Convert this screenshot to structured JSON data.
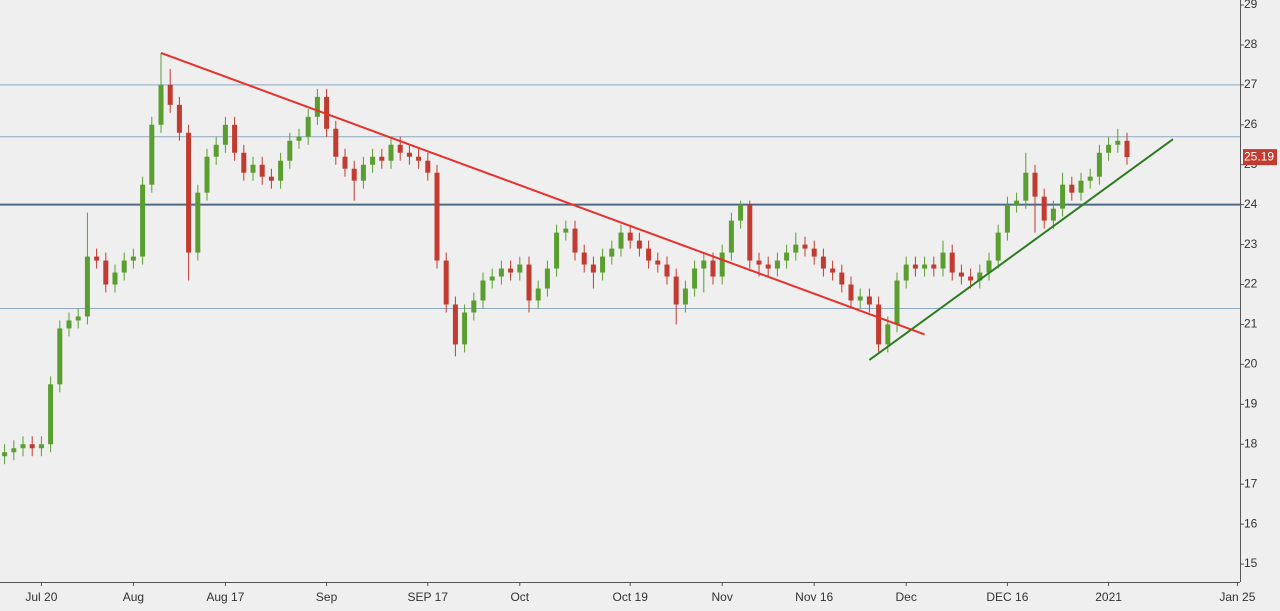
{
  "chart_data": {
    "type": "candlestick",
    "categories": [
      null,
      null,
      null,
      null,
      "Jul 20",
      null,
      null,
      null,
      null,
      null,
      null,
      null,
      null,
      null,
      "Aug",
      null,
      null,
      null,
      null,
      null,
      null,
      null,
      null,
      null,
      "Aug 17",
      null,
      null,
      null,
      null,
      null,
      null,
      null,
      null,
      null,
      null,
      "Sep",
      null,
      null,
      null,
      null,
      null,
      null,
      null,
      null,
      null,
      null,
      "SEP 17",
      null,
      null,
      null,
      null,
      null,
      null,
      null,
      null,
      null,
      "Oct",
      null,
      null,
      null,
      null,
      null,
      null,
      null,
      null,
      null,
      null,
      null,
      "Oct 19",
      null,
      null,
      null,
      null,
      null,
      null,
      null,
      null,
      null,
      "Nov",
      null,
      null,
      null,
      null,
      null,
      null,
      null,
      null,
      null,
      "Nov 16",
      null,
      null,
      null,
      null,
      null,
      null,
      null,
      null,
      null,
      "Dec",
      null,
      null,
      null,
      null,
      null,
      null,
      null,
      null,
      null,
      null,
      "DEC 16",
      null,
      null,
      null,
      null,
      null,
      null,
      null,
      null,
      null,
      null,
      "2021",
      null,
      null,
      null,
      null,
      null,
      null,
      null,
      null,
      null,
      null,
      null,
      null,
      null,
      "Jan 25"
    ],
    "open": [
      17.7,
      17.8,
      17.9,
      18.0,
      17.9,
      18.0,
      19.5,
      20.9,
      21.1,
      21.2,
      22.7,
      22.6,
      22.0,
      22.3,
      22.6,
      22.7,
      24.5,
      26.0,
      27.0,
      26.5,
      25.8,
      22.8,
      24.3,
      25.2,
      25.5,
      26.0,
      25.3,
      24.8,
      25.0,
      24.7,
      24.6,
      25.1,
      25.6,
      25.7,
      26.2,
      26.7,
      25.9,
      25.2,
      24.9,
      24.6,
      25.0,
      25.2,
      25.1,
      25.5,
      25.3,
      25.2,
      25.1,
      24.8,
      22.6,
      21.5,
      20.5,
      21.3,
      21.6,
      22.1,
      22.2,
      22.4,
      22.3,
      22.5,
      21.6,
      21.9,
      22.4,
      23.3,
      23.4,
      22.8,
      22.5,
      22.3,
      22.7,
      22.9,
      23.3,
      23.1,
      22.9,
      22.6,
      22.5,
      22.2,
      21.5,
      21.9,
      22.4,
      22.6,
      22.2,
      22.8,
      23.6,
      24.0,
      22.6,
      22.5,
      22.4,
      22.6,
      22.8,
      23.0,
      22.9,
      22.7,
      22.4,
      22.3,
      22.0,
      21.6,
      21.7,
      21.5,
      20.5,
      21.0,
      22.1,
      22.5,
      22.4,
      22.5,
      22.4,
      22.8,
      22.3,
      22.2,
      22.1,
      22.3,
      22.6,
      23.3,
      24.0,
      24.1,
      24.8,
      24.2,
      23.6,
      23.9,
      24.5,
      24.3,
      24.6,
      24.7,
      25.3,
      25.5,
      25.6,
      null,
      null,
      null,
      null,
      null,
      null,
      null,
      null,
      null,
      null,
      null,
      null
    ],
    "high": [
      18.0,
      18.1,
      18.2,
      18.2,
      18.2,
      19.7,
      21.1,
      21.3,
      21.4,
      23.8,
      22.9,
      22.8,
      22.5,
      22.8,
      22.9,
      24.7,
      26.2,
      27.8,
      27.4,
      26.7,
      26.0,
      24.5,
      25.4,
      25.7,
      26.2,
      26.2,
      25.5,
      25.2,
      25.2,
      24.9,
      25.3,
      25.8,
      25.9,
      26.4,
      26.9,
      26.9,
      26.1,
      25.4,
      25.1,
      25.2,
      25.4,
      25.4,
      25.7,
      25.7,
      25.5,
      25.4,
      25.3,
      25.0,
      22.8,
      21.7,
      21.5,
      21.8,
      22.3,
      22.4,
      22.6,
      22.6,
      22.7,
      22.7,
      22.1,
      22.6,
      23.5,
      23.6,
      23.6,
      23.0,
      22.7,
      22.9,
      23.1,
      23.5,
      23.5,
      23.3,
      23.1,
      22.8,
      22.7,
      22.4,
      22.1,
      22.6,
      22.8,
      22.8,
      23.0,
      23.8,
      24.1,
      24.1,
      22.8,
      22.7,
      22.8,
      23.0,
      23.3,
      23.2,
      23.1,
      22.9,
      22.6,
      22.5,
      22.2,
      21.9,
      21.9,
      21.7,
      21.2,
      22.3,
      22.7,
      22.7,
      22.7,
      22.7,
      23.1,
      23.0,
      22.5,
      22.4,
      22.5,
      22.8,
      23.5,
      24.2,
      24.3,
      25.3,
      25.0,
      24.4,
      24.1,
      24.8,
      24.7,
      24.8,
      24.9,
      25.5,
      25.7,
      25.9,
      25.8,
      null,
      null,
      null,
      null,
      null,
      null,
      null,
      null,
      null,
      null,
      null,
      null
    ],
    "low": [
      17.5,
      17.6,
      17.7,
      17.7,
      17.7,
      17.8,
      19.3,
      20.7,
      20.9,
      21.0,
      22.4,
      21.8,
      21.8,
      22.1,
      22.4,
      22.5,
      24.3,
      25.8,
      26.3,
      25.6,
      22.1,
      22.6,
      24.1,
      25.0,
      25.3,
      25.1,
      24.6,
      24.6,
      24.5,
      24.4,
      24.4,
      24.9,
      25.4,
      25.5,
      26.0,
      25.7,
      25.0,
      24.7,
      24.1,
      24.4,
      24.8,
      24.9,
      24.9,
      25.1,
      25.0,
      24.9,
      24.6,
      22.4,
      21.3,
      20.2,
      20.3,
      21.1,
      21.4,
      21.9,
      22.0,
      22.1,
      22.1,
      21.3,
      21.4,
      21.7,
      22.2,
      23.1,
      22.6,
      22.3,
      21.9,
      22.1,
      22.5,
      22.7,
      22.9,
      22.7,
      22.4,
      22.3,
      22.0,
      21.0,
      21.3,
      21.7,
      21.8,
      22.0,
      22.0,
      22.6,
      23.4,
      22.4,
      22.2,
      22.2,
      22.2,
      22.4,
      22.6,
      22.7,
      22.5,
      22.2,
      22.1,
      21.8,
      21.4,
      21.4,
      21.3,
      20.3,
      20.3,
      20.8,
      21.9,
      22.2,
      22.2,
      22.2,
      22.2,
      22.1,
      22.0,
      21.9,
      21.9,
      22.1,
      22.4,
      23.1,
      23.8,
      23.9,
      23.3,
      23.4,
      23.4,
      23.7,
      24.1,
      24.1,
      24.4,
      24.5,
      25.1,
      25.3,
      25.0,
      null,
      null,
      null,
      null,
      null,
      null,
      null,
      null,
      null,
      null,
      null,
      null
    ],
    "close": [
      17.8,
      17.9,
      18.0,
      17.9,
      18.0,
      19.5,
      20.9,
      21.1,
      21.2,
      22.7,
      22.6,
      22.0,
      22.3,
      22.6,
      22.7,
      24.5,
      26.0,
      27.0,
      26.5,
      25.8,
      22.8,
      24.3,
      25.2,
      25.5,
      26.0,
      25.3,
      24.8,
      25.0,
      24.7,
      24.6,
      25.1,
      25.6,
      25.7,
      26.2,
      26.7,
      25.9,
      25.2,
      24.9,
      24.6,
      25.0,
      25.2,
      25.1,
      25.5,
      25.3,
      25.2,
      25.1,
      24.8,
      22.6,
      21.5,
      20.5,
      21.3,
      21.6,
      22.1,
      22.2,
      22.4,
      22.3,
      22.5,
      21.6,
      21.9,
      22.4,
      23.3,
      23.4,
      22.8,
      22.5,
      22.3,
      22.7,
      22.9,
      23.3,
      23.1,
      22.9,
      22.6,
      22.5,
      22.2,
      21.5,
      21.9,
      22.4,
      22.6,
      22.2,
      22.8,
      23.6,
      24.0,
      22.6,
      22.5,
      22.4,
      22.6,
      22.8,
      23.0,
      22.9,
      22.7,
      22.4,
      22.3,
      22.0,
      21.6,
      21.7,
      21.5,
      20.5,
      21.0,
      22.1,
      22.5,
      22.4,
      22.5,
      22.4,
      22.8,
      22.3,
      22.2,
      22.1,
      22.3,
      22.6,
      23.3,
      24.0,
      24.1,
      24.8,
      24.2,
      23.6,
      23.9,
      24.5,
      24.3,
      24.6,
      24.7,
      25.3,
      25.5,
      25.6,
      25.19,
      null,
      null,
      null,
      null,
      null,
      null,
      null,
      null,
      null,
      null,
      null,
      null
    ],
    "up_color": "#5a9e2f",
    "down_color": "#c23b30",
    "ylim": [
      14.55,
      29.125
    ],
    "yticks": [
      15,
      16,
      17,
      18,
      19,
      20,
      21,
      22,
      23,
      24,
      25,
      26,
      27,
      28,
      29
    ],
    "hlines": [
      {
        "value": 27,
        "color": "#8fa9c0",
        "width": 1
      },
      {
        "value": 25.7,
        "color": "#8fa9c0",
        "width": 1
      },
      {
        "value": 24,
        "color": "#4d6a86",
        "width": 2
      },
      {
        "value": 21.4,
        "color": "#8fa9c0",
        "width": 1
      }
    ],
    "trendlines": [
      {
        "color": "#e8302c",
        "start": [
          17,
          27.8
        ],
        "end": [
          100,
          20.75
        ]
      },
      {
        "color": "#2f7d22",
        "start": [
          94,
          20.11
        ],
        "end": [
          127,
          25.64
        ]
      }
    ],
    "last_price": 25.19,
    "last_price_color": "#c23b30"
  }
}
